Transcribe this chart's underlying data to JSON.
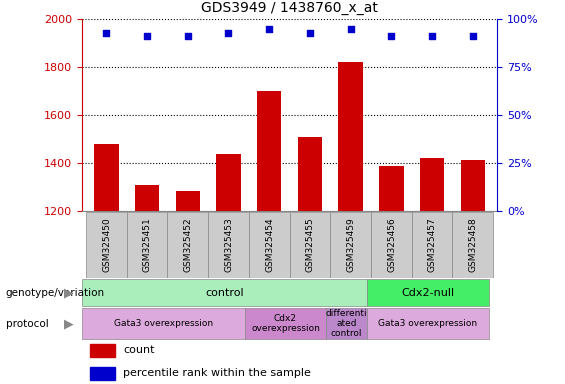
{
  "title": "GDS3949 / 1438760_x_at",
  "samples": [
    "GSM325450",
    "GSM325451",
    "GSM325452",
    "GSM325453",
    "GSM325454",
    "GSM325455",
    "GSM325459",
    "GSM325456",
    "GSM325457",
    "GSM325458"
  ],
  "counts": [
    1480,
    1310,
    1285,
    1440,
    1700,
    1510,
    1820,
    1390,
    1420,
    1415
  ],
  "percentile_ranks": [
    93,
    91,
    91,
    93,
    95,
    93,
    95,
    91,
    91,
    91
  ],
  "ylim_left": [
    1200,
    2000
  ],
  "ylim_right": [
    0,
    100
  ],
  "yticks_left": [
    1200,
    1400,
    1600,
    1800,
    2000
  ],
  "yticks_right": [
    0,
    25,
    50,
    75,
    100
  ],
  "bar_color": "#cc0000",
  "dot_color": "#0000cc",
  "genotype_groups": [
    {
      "label": "control",
      "start": 0,
      "end": 7,
      "color": "#aaeebb"
    },
    {
      "label": "Cdx2-null",
      "start": 7,
      "end": 10,
      "color": "#44ee66"
    }
  ],
  "protocol_groups": [
    {
      "label": "Gata3 overexpression",
      "start": 0,
      "end": 4,
      "color": "#ddaadd"
    },
    {
      "label": "Cdx2\noverexpression",
      "start": 4,
      "end": 6,
      "color": "#cc88cc"
    },
    {
      "label": "differenti\nated\ncontrol",
      "start": 6,
      "end": 7,
      "color": "#bb88cc"
    },
    {
      "label": "Gata3 overexpression",
      "start": 7,
      "end": 10,
      "color": "#ddaadd"
    }
  ],
  "left_tick_color": "#cc0000",
  "right_tick_color": "#0000cc",
  "sample_box_color": "#cccccc",
  "sample_box_edge": "#888888"
}
